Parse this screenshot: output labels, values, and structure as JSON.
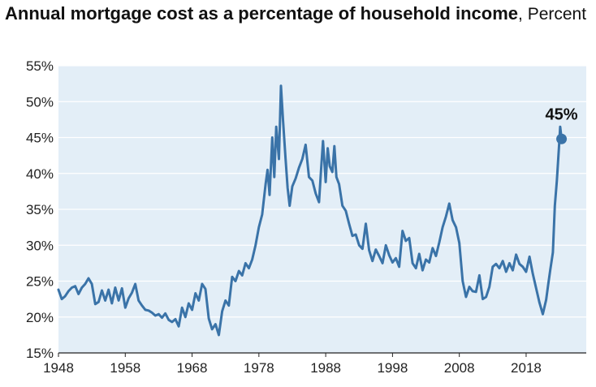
{
  "chart_data": {
    "type": "line",
    "title": "Annual mortgage cost as a percentage of household income",
    "subtitle": "Percent",
    "ylim": [
      15,
      55
    ],
    "xlim": [
      1948,
      2027
    ],
    "y_ticks": [
      "15%",
      "20%",
      "25%",
      "30%",
      "35%",
      "40%",
      "45%",
      "50%",
      "55%"
    ],
    "x_ticks": [
      "1948",
      "1958",
      "1968",
      "1978",
      "1988",
      "1998",
      "2008",
      "2018"
    ],
    "grid": true,
    "line_color": "#3a73a8",
    "plot_background": "#e3eef7",
    "annotation": {
      "label": "45%",
      "x": 2023.3,
      "y": 44.8
    },
    "series": [
      {
        "x": [
          1948,
          1948.5,
          1949,
          1949.5,
          1950,
          1950.5,
          1951,
          1951.5,
          1952,
          1952.5,
          1953,
          1953.5,
          1954,
          1954.5,
          1955,
          1955.5,
          1956,
          1956.5,
          1957,
          1957.5,
          1958,
          1958.5,
          1959,
          1959.5,
          1960,
          1960.5,
          1961,
          1961.5,
          1962,
          1962.5,
          1963,
          1963.5,
          1964,
          1964.5,
          1965,
          1965.5,
          1966,
          1966.5,
          1967,
          1967.5,
          1968,
          1968.5,
          1969,
          1969.5,
          1970,
          1970.5,
          1971,
          1971.5,
          1972,
          1972.5,
          1973,
          1973.5,
          1974,
          1974.5,
          1975,
          1975.5,
          1976,
          1976.5,
          1977,
          1977.5,
          1978,
          1978.5,
          1979,
          1979.3,
          1979.6,
          1980,
          1980.3,
          1980.6,
          1981,
          1981.3,
          1981.6,
          1982,
          1982.3,
          1982.6,
          1983,
          1983.5,
          1984,
          1984.5,
          1985,
          1985.5,
          1986,
          1986.5,
          1987,
          1987.3,
          1987.6,
          1988,
          1988.3,
          1988.6,
          1989,
          1989.3,
          1989.6,
          1990,
          1990.5,
          1991,
          1991.5,
          1992,
          1992.5,
          1993,
          1993.5,
          1994,
          1994.5,
          1995,
          1995.5,
          1996,
          1996.5,
          1997,
          1997.5,
          1998,
          1998.5,
          1999,
          1999.5,
          2000,
          2000.5,
          2001,
          2001.5,
          2002,
          2002.5,
          2003,
          2003.5,
          2004,
          2004.5,
          2005,
          2005.5,
          2006,
          2006.5,
          2007,
          2007.5,
          2008,
          2008.5,
          2009,
          2009.5,
          2010,
          2010.5,
          2011,
          2011.5,
          2012,
          2012.5,
          2013,
          2013.5,
          2014,
          2014.5,
          2015,
          2015.5,
          2016,
          2016.5,
          2017,
          2017.5,
          2018,
          2018.5,
          2019,
          2019.5,
          2020,
          2020.5,
          2021,
          2021.3,
          2021.6,
          2022,
          2022.3,
          2022.6,
          2022.9,
          2023.1,
          2023.3
        ],
        "y": [
          23.8,
          22.5,
          22.9,
          23.6,
          24.1,
          24.3,
          23.2,
          24.1,
          24.6,
          25.4,
          24.6,
          21.8,
          22.1,
          23.7,
          22.3,
          23.8,
          21.9,
          24.1,
          22.3,
          24.0,
          21.3,
          22.6,
          23.4,
          24.6,
          22.3,
          21.6,
          21.0,
          20.9,
          20.6,
          20.2,
          20.4,
          19.9,
          20.5,
          19.6,
          19.3,
          19.7,
          18.7,
          21.3,
          20.0,
          21.9,
          21.0,
          23.3,
          22.3,
          24.6,
          23.9,
          19.8,
          18.3,
          19.0,
          17.5,
          20.8,
          22.3,
          21.6,
          25.6,
          25.0,
          26.4,
          25.8,
          27.5,
          26.8,
          28.0,
          30.0,
          32.5,
          34.3,
          38.5,
          40.5,
          37.0,
          45.0,
          39.5,
          46.5,
          42.0,
          52.2,
          47.5,
          42.0,
          38.0,
          35.5,
          38.2,
          39.3,
          40.8,
          42.0,
          44.0,
          39.5,
          39.0,
          37.2,
          36.0,
          40.5,
          44.5,
          38.8,
          43.5,
          41.0,
          40.2,
          43.8,
          39.5,
          38.5,
          35.5,
          34.8,
          33.0,
          31.3,
          31.5,
          30.0,
          29.5,
          33.0,
          29.3,
          27.8,
          29.4,
          28.5,
          27.5,
          30.0,
          28.6,
          27.6,
          28.2,
          27.0,
          32.0,
          30.6,
          31.0,
          27.5,
          26.8,
          28.8,
          26.5,
          28.0,
          27.6,
          29.6,
          28.5,
          30.4,
          32.5,
          34.0,
          35.8,
          33.5,
          32.5,
          30.3,
          25.0,
          22.8,
          24.2,
          23.6,
          23.5,
          25.8,
          22.5,
          22.8,
          24.2,
          27.0,
          27.4,
          26.8,
          27.8,
          26.3,
          27.5,
          26.5,
          28.7,
          27.4,
          27.0,
          26.3,
          28.4,
          26.0,
          24.0,
          22.0,
          20.4,
          22.4,
          24.5,
          26.5,
          29.0,
          35.5,
          39.0,
          43.5,
          46.5,
          44.8
        ]
      }
    ]
  }
}
